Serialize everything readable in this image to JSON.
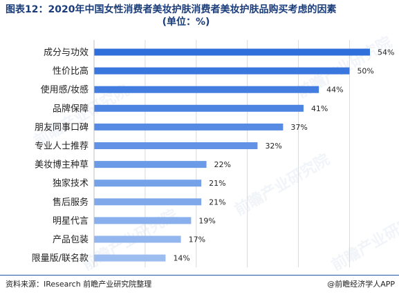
{
  "header": {
    "title_line1": "图表12：2020年中国女性消费者美妆护肤消费者美妆护肤品购买考虑的因素",
    "title_line2": "(单位：%)"
  },
  "chart_data": {
    "type": "bar",
    "orientation": "horizontal",
    "categories": [
      "成分与功效",
      "性价比高",
      "使用感/妆感",
      "品牌保障",
      "朋友同事口碑",
      "专业人士推荐",
      "美妆博主种草",
      "独家技术",
      "售后服务",
      "明星代言",
      "产品包装",
      "限量版/联名款"
    ],
    "values": [
      54,
      50,
      44,
      41,
      37,
      32,
      22,
      21,
      21,
      19,
      17,
      14
    ],
    "value_labels": [
      "54%",
      "50%",
      "44%",
      "41%",
      "37%",
      "32%",
      "22%",
      "21%",
      "21%",
      "19%",
      "17%",
      "14%"
    ],
    "xlim": [
      0,
      60
    ],
    "grid": true,
    "bar_color_top": "#2f6fdb",
    "bar_color_bottom": "#9dbdf0"
  },
  "footer": {
    "source": "资料来源：IResearch 前瞻产业研究院整理",
    "credit": "@前瞻经济学人APP"
  },
  "watermark": {
    "text": "前瞻产业研究院"
  }
}
